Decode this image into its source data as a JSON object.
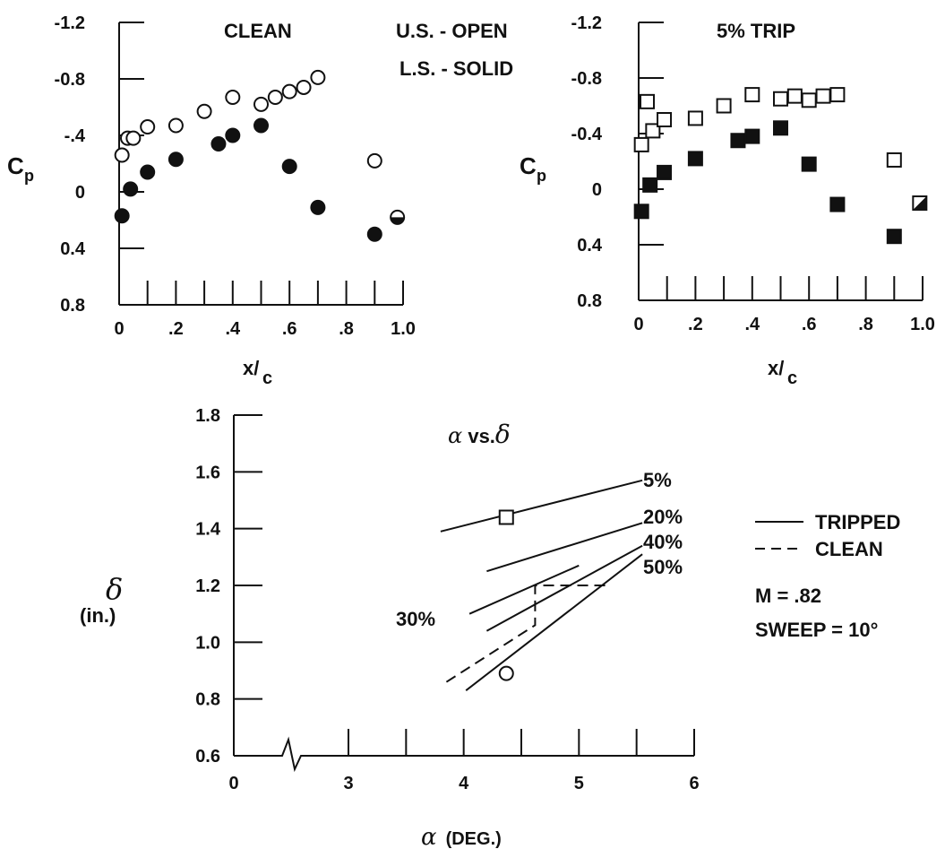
{
  "chart_data": [
    {
      "type": "scatter",
      "title": "CLEAN",
      "legend": [
        "U.S. - OPEN",
        "L.S. - SOLID"
      ],
      "xlabel_main": "x/",
      "xlabel_sub": "c",
      "ylabel_main": "C",
      "ylabel_sub": "p",
      "xlim": [
        0,
        1.0
      ],
      "ylim": [
        -1.2,
        0.8
      ],
      "y_inverted": true,
      "xticks": [
        0,
        0.2,
        0.4,
        0.6,
        0.8,
        1.0
      ],
      "xticklabels": [
        "0",
        ".2",
        ".4",
        ".6",
        ".8",
        "1.0"
      ],
      "yticks": [
        -1.2,
        -0.8,
        -0.4,
        0,
        0.4,
        0.8
      ],
      "yticklabels": [
        "-1.2",
        "-0.8",
        "-.4",
        "0",
        "0.4",
        "0.8"
      ],
      "marker": "circle",
      "series": [
        {
          "name": "U.S. - OPEN",
          "filled": false,
          "x": [
            0.01,
            0.03,
            0.05,
            0.1,
            0.2,
            0.3,
            0.4,
            0.5,
            0.55,
            0.6,
            0.65,
            0.7,
            0.9
          ],
          "y": [
            -0.26,
            -0.38,
            -0.38,
            -0.46,
            -0.47,
            -0.57,
            -0.67,
            -0.62,
            -0.67,
            -0.71,
            -0.74,
            -0.81,
            -0.22
          ]
        },
        {
          "name": "L.S. - SOLID",
          "filled": true,
          "x": [
            0.01,
            0.04,
            0.1,
            0.2,
            0.35,
            0.4,
            0.5,
            0.6,
            0.7,
            0.9
          ],
          "y": [
            0.17,
            -0.02,
            -0.14,
            -0.23,
            -0.34,
            -0.4,
            -0.47,
            -0.18,
            0.11,
            0.3
          ]
        },
        {
          "name": "",
          "filled": "half",
          "x": [
            0.98
          ],
          "y": [
            0.18
          ]
        }
      ]
    },
    {
      "type": "scatter",
      "title": "5% TRIP",
      "xlabel_main": "x/",
      "xlabel_sub": "c",
      "ylabel_main": "C",
      "ylabel_sub": "p",
      "xlim": [
        0,
        1.0
      ],
      "ylim": [
        -1.2,
        0.8
      ],
      "y_inverted": true,
      "xticks": [
        0,
        0.2,
        0.4,
        0.6,
        0.8,
        1.0
      ],
      "xticklabels": [
        "0",
        ".2",
        ".4",
        ".6",
        ".8",
        "1.0"
      ],
      "yticks": [
        -1.2,
        -0.8,
        -0.4,
        0,
        0.4,
        0.8
      ],
      "yticklabels": [
        "-1.2",
        "-0.8",
        "-0.4",
        "0",
        "0.4",
        "0.8"
      ],
      "marker": "square",
      "series": [
        {
          "name": "U.S. - OPEN",
          "filled": false,
          "x": [
            0.01,
            0.03,
            0.05,
            0.09,
            0.2,
            0.3,
            0.4,
            0.5,
            0.55,
            0.6,
            0.65,
            0.7,
            0.9
          ],
          "y": [
            -0.32,
            -0.63,
            -0.42,
            -0.5,
            -0.51,
            -0.6,
            -0.68,
            -0.65,
            -0.67,
            -0.64,
            -0.67,
            -0.68,
            -0.21
          ]
        },
        {
          "name": "L.S. - SOLID",
          "filled": true,
          "x": [
            0.01,
            0.04,
            0.09,
            0.2,
            0.35,
            0.4,
            0.5,
            0.6,
            0.7,
            0.9
          ],
          "y": [
            0.16,
            -0.03,
            -0.12,
            -0.22,
            -0.35,
            -0.38,
            -0.44,
            -0.18,
            0.11,
            0.34
          ]
        },
        {
          "name": "",
          "filled": "half",
          "x": [
            0.99
          ],
          "y": [
            0.1
          ]
        }
      ]
    },
    {
      "type": "line",
      "title_alpha": "α",
      "title_vs": " vs.",
      "title_delta": "δ",
      "xlabel_alpha": "α",
      "xlabel_rest": "(DEG.)",
      "ylabel_delta": "δ",
      "ylabel_unit": "(in.)",
      "xlim": [
        0,
        6
      ],
      "ylim": [
        0.6,
        1.8
      ],
      "axis_break": true,
      "xticks": [
        0,
        3,
        4,
        5,
        6
      ],
      "xticklabels": [
        "0",
        "3",
        "4",
        "5",
        "6"
      ],
      "yticks": [
        0.6,
        0.8,
        1.0,
        1.2,
        1.4,
        1.6,
        1.8
      ],
      "yticklabels": [
        "0.6",
        "0.8",
        "1.0",
        "1.2",
        "1.4",
        "1.6",
        "1.8"
      ],
      "legend": [
        {
          "label": "TRIPPED",
          "style": "solid"
        },
        {
          "label": "CLEAN",
          "style": "dashed"
        }
      ],
      "annotations": [
        "M = .82",
        "SWEEP = 10°"
      ],
      "series": [
        {
          "name": "5%",
          "style": "solid",
          "x": [
            3.8,
            5.55
          ],
          "y": [
            1.39,
            1.57
          ]
        },
        {
          "name": "20%",
          "style": "solid",
          "x": [
            4.2,
            5.55
          ],
          "y": [
            1.25,
            1.42
          ]
        },
        {
          "name": "30%",
          "style": "solid",
          "x": [
            4.05,
            5.0
          ],
          "y": [
            1.1,
            1.27
          ]
        },
        {
          "name": "40%",
          "style": "solid",
          "x": [
            4.2,
            5.55
          ],
          "y": [
            1.04,
            1.34
          ]
        },
        {
          "name": "50%",
          "style": "solid",
          "x": [
            4.02,
            5.55
          ],
          "y": [
            0.83,
            1.31
          ]
        },
        {
          "name": "CLEAN",
          "style": "dashed",
          "x": [
            3.85,
            4.62,
            4.62,
            5.25
          ],
          "y": [
            0.86,
            1.06,
            1.2,
            1.2
          ]
        }
      ],
      "points": [
        {
          "marker": "square",
          "x": 4.37,
          "y": 1.44
        },
        {
          "marker": "circle",
          "x": 4.37,
          "y": 0.89
        }
      ]
    }
  ]
}
